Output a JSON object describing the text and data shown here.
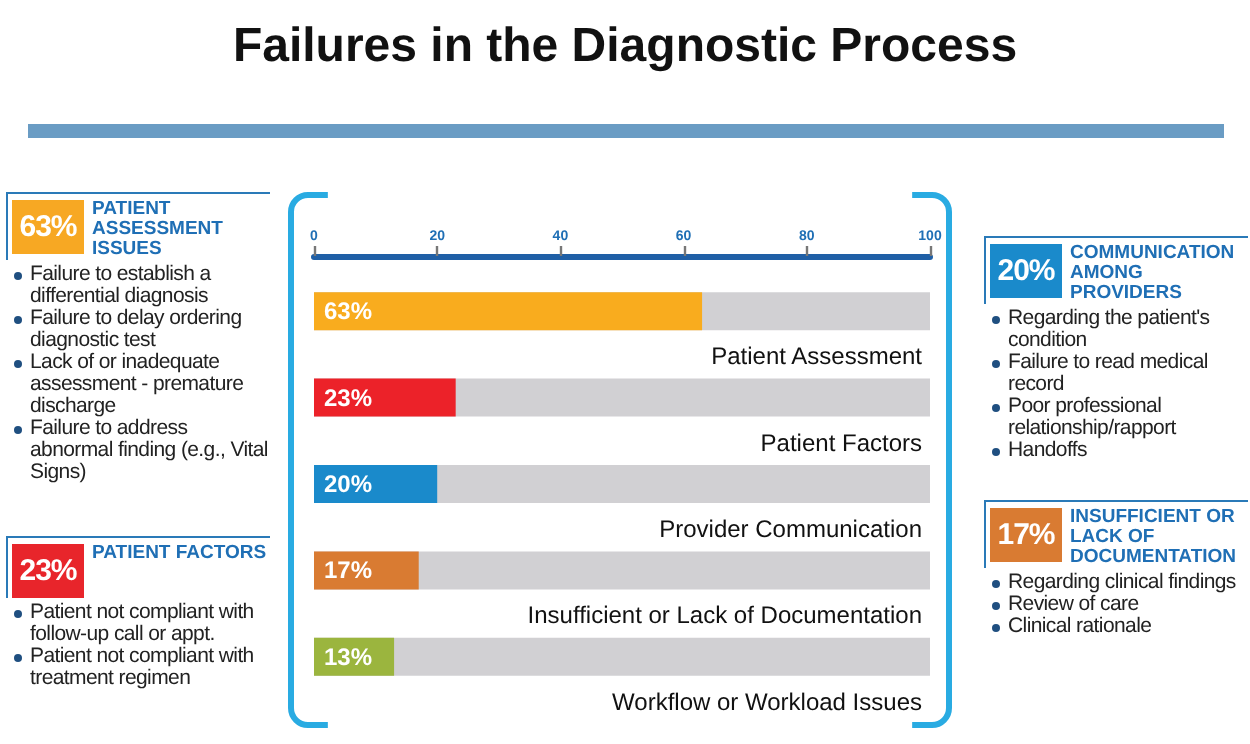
{
  "chart_data": [
    {
      "type": "other",
      "title": "PATIENT ASSESSMENT ISSUES",
      "color": "#f7a823",
      "annotations": [
        "63%",
        "Failure to establish a differential diagnosis",
        "Failure to delay ordering diagnostic test",
        "Lack of or inadequate assessment - premature discharge",
        "Failure to address abnormal finding (e.g., Vital Signs)"
      ]
    },
    {
      "type": "other",
      "title": "PATIENT FACTORS",
      "color": "#e8252b",
      "annotations": [
        "23%",
        "Patient not compliant with follow-up call or appt.",
        "Patient not compliant with treatment regimen"
      ]
    },
    {
      "type": "bar",
      "title": "Failures in the Diagnostic Process",
      "orientation": "horizontal",
      "categories": [
        "Patient Assessment",
        "Patient Factors",
        "Provider Communication",
        "Insufficient or Lack of Documentation",
        "Workflow or Workload Issues"
      ],
      "values": [
        63,
        23,
        20,
        17,
        13
      ],
      "colors": [
        "#f9ac1e",
        "#ec2229",
        "#1a8acb",
        "#d97b32",
        "#9bb53e"
      ],
      "value_labels": [
        "63%",
        "23%",
        "20%",
        "17%",
        "13%"
      ],
      "xlim": [
        0,
        100
      ],
      "xticks": [
        0,
        20,
        40,
        60,
        80,
        100
      ]
    },
    {
      "type": "other",
      "title": "COMMUNICATION AMONG PROVIDERS",
      "color": "#1a8acb",
      "annotations": [
        "20%",
        "Regarding the patient's condition",
        "Failure to read medical record",
        "Poor professional relationship/rapport",
        "Handoffs"
      ]
    },
    {
      "type": "other",
      "title": "INSUFFICIENT OR LACK OF DOCUMENTATION",
      "color": "#d97b32",
      "annotations": [
        "17%",
        "Regarding clinical findings",
        "Review of care",
        "Clinical rationale"
      ]
    }
  ]
}
